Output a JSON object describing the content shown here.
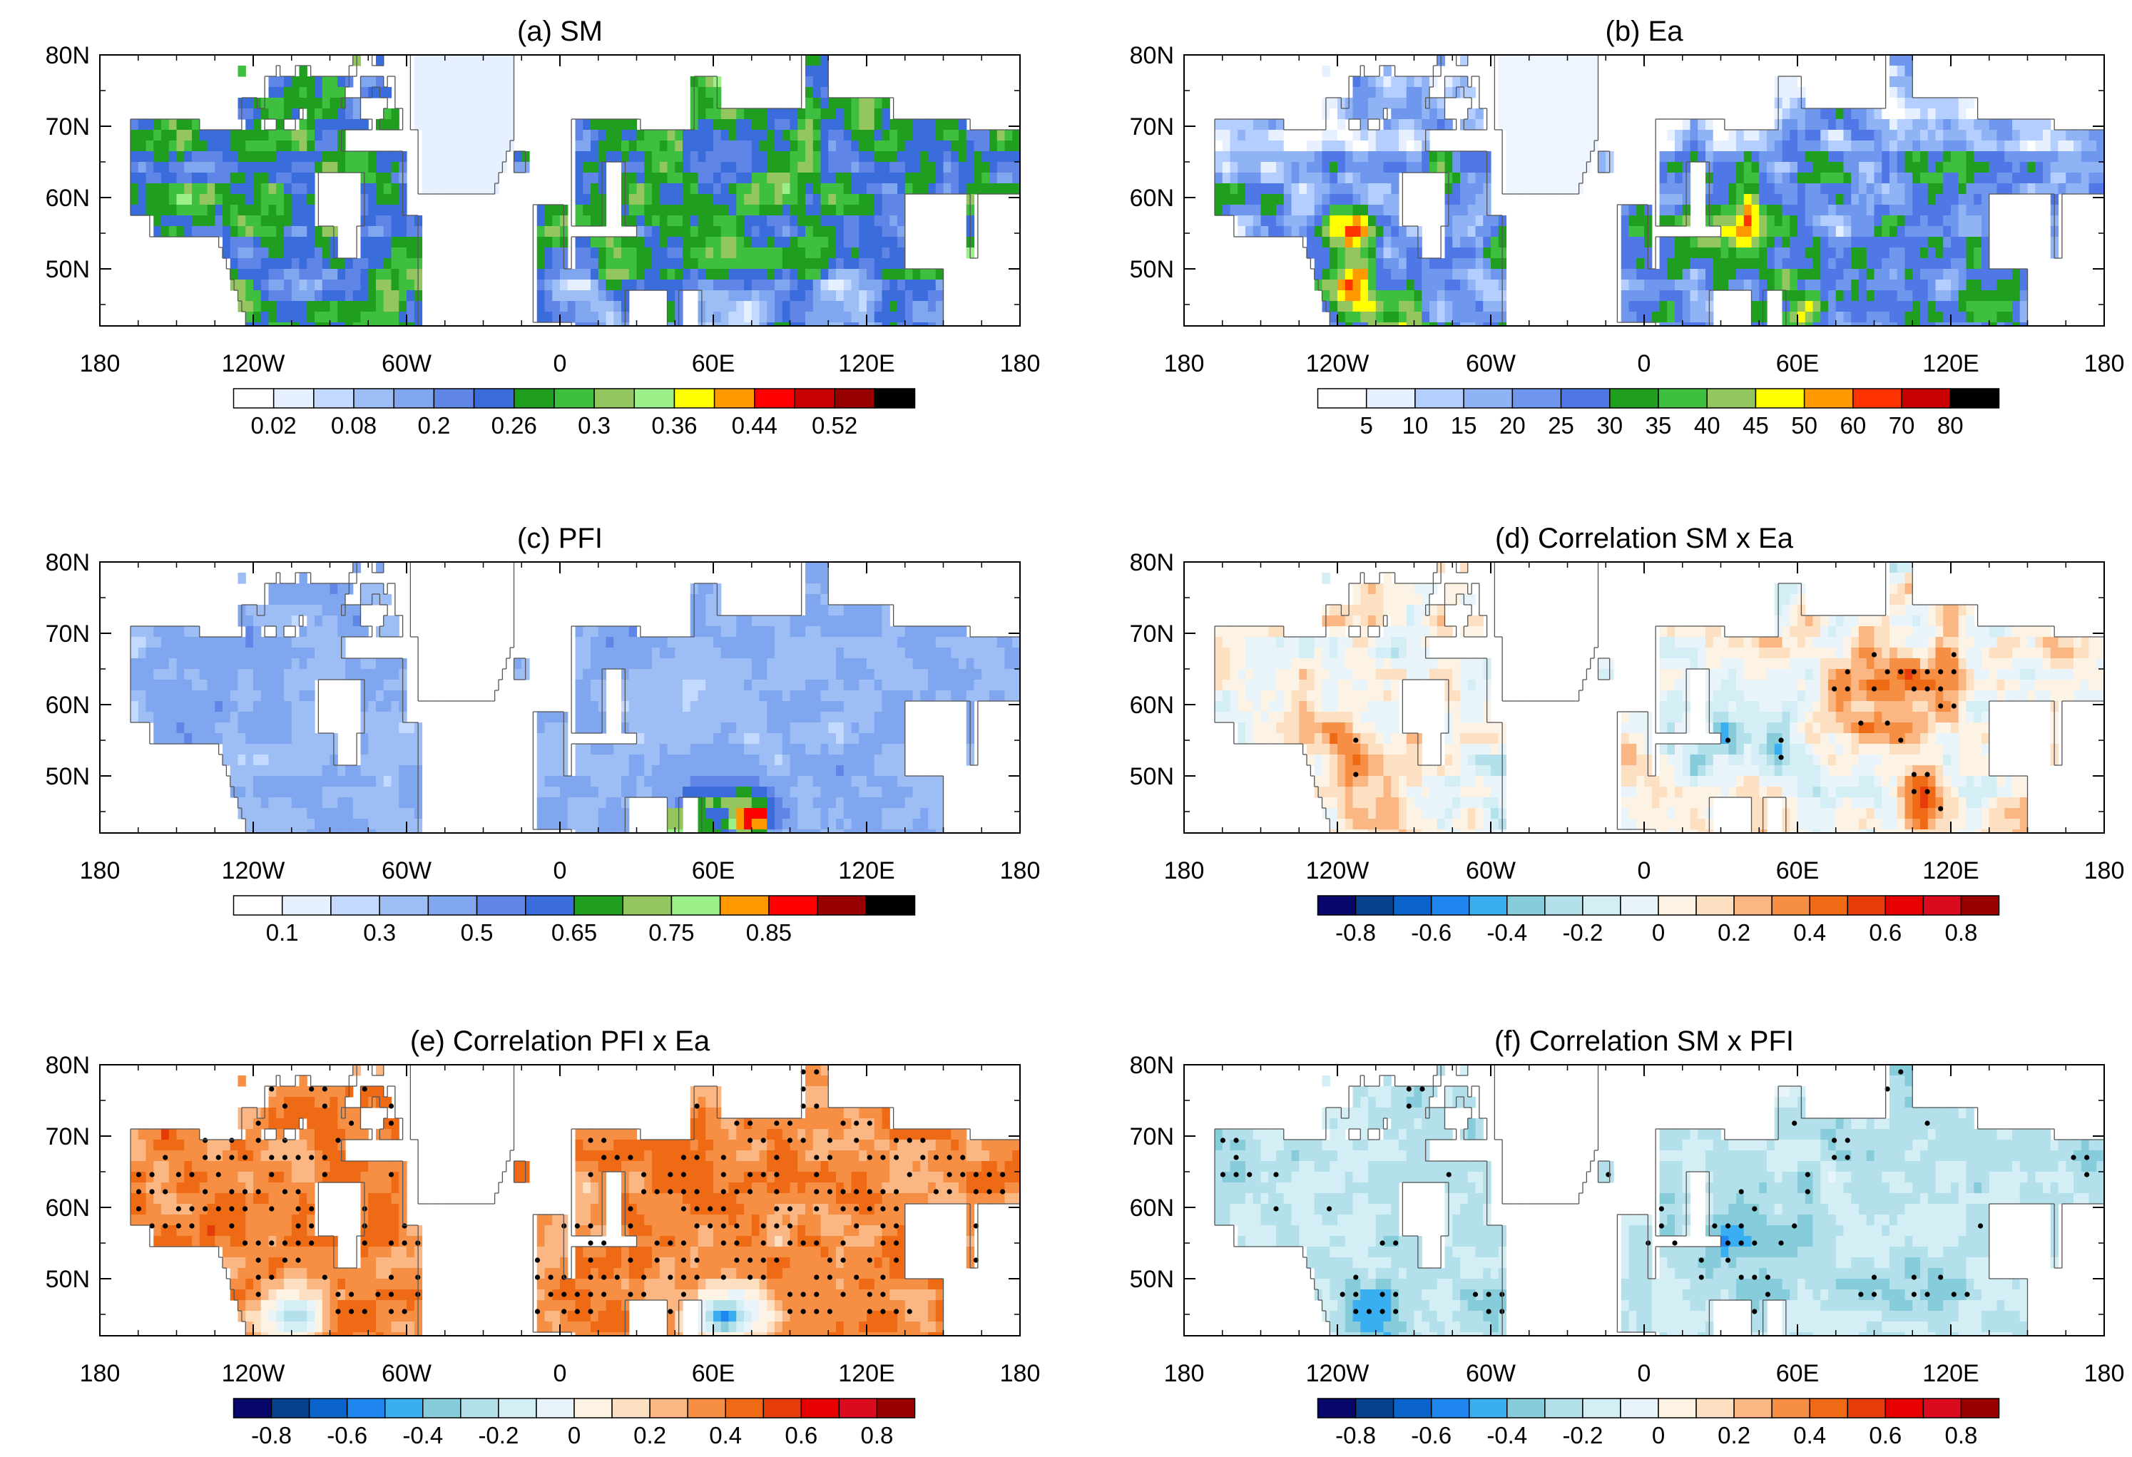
{
  "figure": {
    "panels": [
      {
        "id": "a",
        "title": "(a) SM",
        "palette": [
          "#ffffff",
          "#e6f0ff",
          "#c4d9ff",
          "#9dbdf5",
          "#7fa6ee",
          "#5f86e6",
          "#3a6cdc",
          "#1f9e1f",
          "#3fbf3f",
          "#94c65f",
          "#9cf08a",
          "#ffff00",
          "#ff9900",
          "#ff0000",
          "#c80000",
          "#960000",
          "#000000"
        ],
        "colorbar_labels": [
          "0.02",
          "0.08",
          "0.2",
          "0.26",
          "0.3",
          "0.36",
          "0.44",
          "0.52"
        ],
        "label_positions": [
          1,
          3,
          5,
          7,
          9,
          11,
          13,
          15
        ],
        "stipple": false
      },
      {
        "id": "b",
        "title": "(b) Ea",
        "palette": [
          "#ffffff",
          "#e6f0ff",
          "#b4ceff",
          "#8fb3f5",
          "#6f97ee",
          "#4f78e6",
          "#1f9e1f",
          "#3fbf3f",
          "#94c65f",
          "#ffff00",
          "#ff9900",
          "#ff3300",
          "#c80000",
          "#000000"
        ],
        "colorbar_labels": [
          "5",
          "10",
          "15",
          "20",
          "25",
          "30",
          "35",
          "40",
          "45",
          "50",
          "60",
          "70",
          "80"
        ],
        "label_positions": [
          1,
          2,
          3,
          4,
          5,
          6,
          7,
          8,
          9,
          10,
          11,
          12,
          13
        ],
        "stipple": false
      },
      {
        "id": "c",
        "title": "(c) PFI",
        "palette": [
          "#ffffff",
          "#e6f0ff",
          "#c4d9ff",
          "#9dbdf5",
          "#7fa6ee",
          "#5f86e6",
          "#3a6cdc",
          "#1f9e1f",
          "#94c65f",
          "#9cf08a",
          "#ff9900",
          "#ff0000",
          "#960000",
          "#000000"
        ],
        "colorbar_labels": [
          "0.1",
          "0.3",
          "0.5",
          "0.65",
          "0.75",
          "0.85"
        ],
        "label_positions": [
          1,
          3,
          5,
          7,
          9,
          11
        ],
        "stipple": false
      },
      {
        "id": "d",
        "title": "(d) Correlation SM x Ea",
        "palette": [
          "#08086b",
          "#08418c",
          "#0a64cc",
          "#1f86f0",
          "#39aef0",
          "#87ccdb",
          "#b3e0ea",
          "#d4eef5",
          "#e9f4fa",
          "#fdf3e4",
          "#fde0c2",
          "#fbb783",
          "#f68f44",
          "#ee6a14",
          "#e63c0a",
          "#e60000",
          "#dc0a1e",
          "#9b0000"
        ],
        "colorbar_labels": [
          "-0.8",
          "-0.6",
          "-0.4",
          "-0.2",
          "0",
          "0.2",
          "0.4",
          "0.6",
          "0.8"
        ],
        "label_positions": [
          1,
          3,
          5,
          7,
          9,
          11,
          13,
          15,
          17
        ],
        "stipple": true
      },
      {
        "id": "e",
        "title": "(e) Correlation PFI x Ea",
        "palette": [
          "#08086b",
          "#08418c",
          "#0a64cc",
          "#1f86f0",
          "#39aef0",
          "#87ccdb",
          "#b3e0ea",
          "#d4eef5",
          "#e9f4fa",
          "#fdf3e4",
          "#fde0c2",
          "#fbb783",
          "#f68f44",
          "#ee6a14",
          "#e63c0a",
          "#e60000",
          "#dc0a1e",
          "#9b0000"
        ],
        "colorbar_labels": [
          "-0.8",
          "-0.6",
          "-0.4",
          "-0.2",
          "0",
          "0.2",
          "0.4",
          "0.6",
          "0.8"
        ],
        "label_positions": [
          1,
          3,
          5,
          7,
          9,
          11,
          13,
          15,
          17
        ],
        "stipple": true
      },
      {
        "id": "f",
        "title": "(f) Correlation SM x PFI",
        "palette": [
          "#08086b",
          "#08418c",
          "#0a64cc",
          "#1f86f0",
          "#39aef0",
          "#87ccdb",
          "#b3e0ea",
          "#d4eef5",
          "#e9f4fa",
          "#fdf3e4",
          "#fde0c2",
          "#fbb783",
          "#f68f44",
          "#ee6a14",
          "#e63c0a",
          "#e60000",
          "#dc0a1e",
          "#9b0000"
        ],
        "colorbar_labels": [
          "-0.8",
          "-0.6",
          "-0.4",
          "-0.2",
          "0",
          "0.2",
          "0.4",
          "0.6",
          "0.8"
        ],
        "label_positions": [
          1,
          3,
          5,
          7,
          9,
          11,
          13,
          15,
          17
        ],
        "stipple": true
      }
    ]
  },
  "chart_data": {
    "type": "heatmap",
    "layout": "3 rows x 2 columns of lat-lon maps",
    "x_ticks": [
      "180",
      "120W",
      "60W",
      "0",
      "60E",
      "120E",
      "180"
    ],
    "x_ticks_deg": [
      -180,
      -120,
      -60,
      0,
      60,
      120,
      180
    ],
    "y_ticks": [
      "80N",
      "70N",
      "60N",
      "50N"
    ],
    "y_ticks_deg": [
      80,
      70,
      60,
      50
    ],
    "xlim": [
      -180,
      180
    ],
    "ylim": [
      42,
      80
    ],
    "panels": [
      "(a) SM",
      "(b) Ea",
      "(c) PFI",
      "(d) Correlation SM x Ea",
      "(e) Correlation PFI x Ea",
      "(f) Correlation SM x PFI"
    ]
  }
}
